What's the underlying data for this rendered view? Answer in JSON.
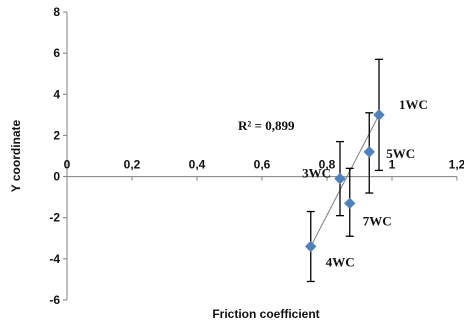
{
  "chart_data": {
    "type": "scatter",
    "xlabel": "Friction coefficient",
    "ylabel": "Y coordinate",
    "xlim": [
      0,
      1.2
    ],
    "ylim": [
      -6,
      8
    ],
    "x_ticks": [
      0,
      0.2,
      0.4,
      0.6,
      0.8,
      1,
      1.2
    ],
    "x_tick_labels": [
      "0",
      "0,2",
      "0,4",
      "0,6",
      "0,8",
      "1",
      "1,2"
    ],
    "y_ticks": [
      -6,
      -4,
      -2,
      0,
      2,
      4,
      6,
      8
    ],
    "y_tick_labels": [
      "-6",
      "-4",
      "-2",
      "0",
      "2",
      "4",
      "6",
      "8"
    ],
    "grid": false,
    "marker_color": "#4f81bd",
    "error_bar_color": "#000000",
    "trendline_color": "#7f7f7f",
    "points": [
      {
        "label": "1WC",
        "x": 0.96,
        "y": 3.0,
        "y_low": 0.3,
        "y_high": 5.7
      },
      {
        "label": "5WC",
        "x": 0.93,
        "y": 1.2,
        "y_low": -0.8,
        "y_high": 3.1
      },
      {
        "label": "3WC",
        "x": 0.84,
        "y": -0.1,
        "y_low": -1.9,
        "y_high": 1.7
      },
      {
        "label": "7WC",
        "x": 0.87,
        "y": -1.3,
        "y_low": -2.9,
        "y_high": 0.4
      },
      {
        "label": "4WC",
        "x": 0.75,
        "y": -3.4,
        "y_low": -5.1,
        "y_high": -1.7
      }
    ],
    "trendline": {
      "x": [
        0.75,
        0.96
      ],
      "y": [
        -3.4,
        3.0
      ]
    },
    "annotation": "R² = 0,899"
  }
}
